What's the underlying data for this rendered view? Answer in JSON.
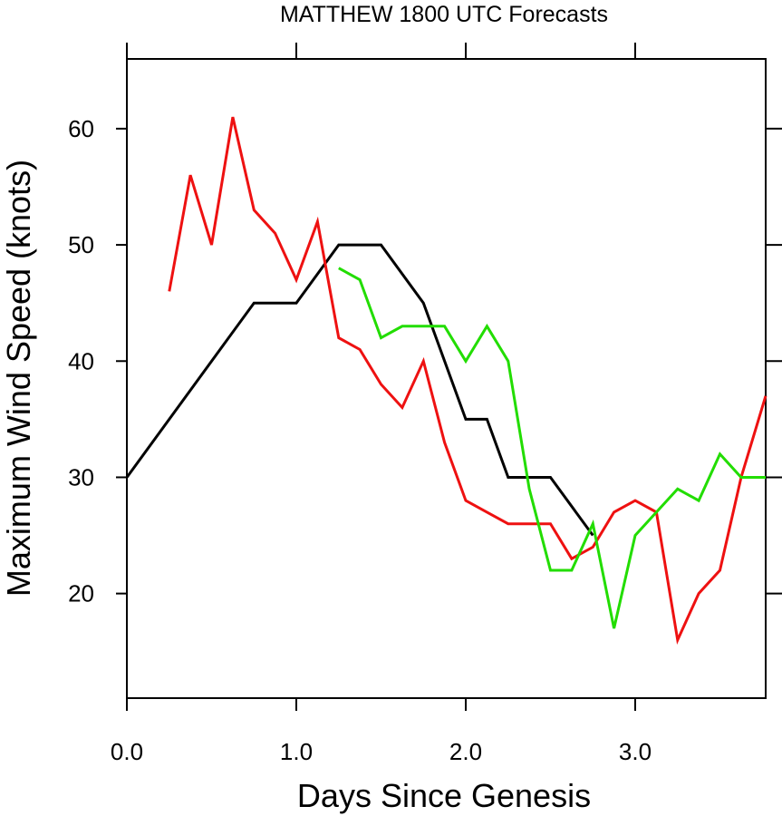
{
  "chart_data": {
    "type": "line",
    "title": "MATTHEW 1800 UTC Forecasts",
    "xlabel": "Days Since Genesis",
    "ylabel": "Maximum Wind Speed (knots)",
    "xlim": [
      0,
      3.77
    ],
    "ylim": [
      11,
      66
    ],
    "xticks": [
      0,
      1,
      2,
      3
    ],
    "xtick_labels": [
      "0.0",
      "1.0",
      "2.0",
      "3.0"
    ],
    "yticks": [
      20,
      30,
      40,
      50,
      60
    ],
    "ytick_labels": [
      "20",
      "30",
      "40",
      "50",
      "60"
    ],
    "grid": false,
    "legend": "none",
    "series": [
      {
        "color": "#000000",
        "x": [
          0,
          0.75,
          1.0,
          1.25,
          1.5,
          1.75,
          2.0,
          2.125,
          2.25,
          2.5,
          2.75
        ],
        "y": [
          30,
          45,
          45,
          50,
          50,
          45,
          35,
          35,
          30,
          30,
          25
        ]
      },
      {
        "color": "#ee1111",
        "x": [
          0.25,
          0.375,
          0.5,
          0.625,
          0.75,
          0.875,
          1.0,
          1.125,
          1.25,
          1.375,
          1.5,
          1.625,
          1.75,
          1.875,
          2.0,
          2.125,
          2.25,
          2.375,
          2.5,
          2.625,
          2.75,
          2.875,
          3.0,
          3.125,
          3.25,
          3.375,
          3.5,
          3.625,
          3.77
        ],
        "y": [
          46,
          56,
          50,
          61,
          53,
          51,
          47,
          52,
          42,
          41,
          38,
          36,
          40,
          33,
          28,
          27,
          26,
          26,
          26,
          23,
          24,
          27,
          28,
          27,
          16,
          20,
          22,
          30,
          37
        ]
      },
      {
        "color": "#22dd00",
        "x": [
          1.25,
          1.375,
          1.5,
          1.625,
          1.75,
          1.875,
          2.0,
          2.125,
          2.25,
          2.375,
          2.5,
          2.625,
          2.75,
          2.875,
          3.0,
          3.125,
          3.25,
          3.375,
          3.5,
          3.625,
          3.77
        ],
        "y": [
          48,
          47,
          42,
          43,
          43,
          43,
          40,
          43,
          40,
          29,
          22,
          22,
          26,
          17,
          25,
          27,
          29,
          28,
          32,
          30,
          30
        ]
      }
    ]
  }
}
